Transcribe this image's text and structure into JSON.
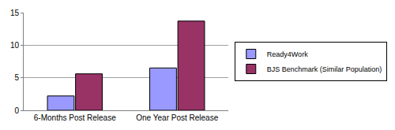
{
  "chart_data": {
    "type": "bar",
    "categories": [
      "6-Months Post Release",
      "One Year Post Release"
    ],
    "series": [
      {
        "name": "Ready4Work",
        "color": "#9999ff",
        "values": [
          2.2,
          6.5
        ]
      },
      {
        "name": "BJS Benchmark (Similar Population)",
        "color": "#993366",
        "values": [
          5.6,
          13.7
        ]
      }
    ],
    "ylim": [
      0,
      15
    ],
    "yticks": [
      0,
      5,
      10,
      15
    ],
    "grid": true,
    "legend": "right"
  }
}
